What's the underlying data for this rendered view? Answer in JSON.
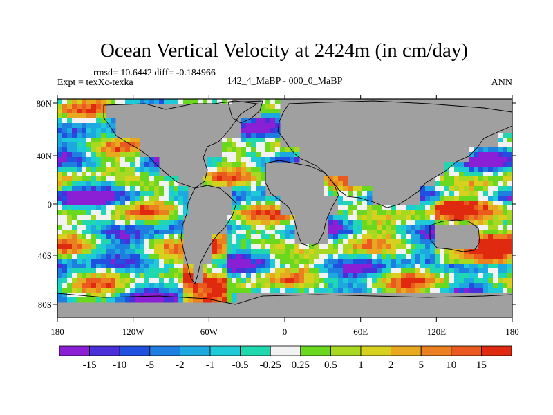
{
  "chart_data": {
    "type": "heatmap",
    "title": "Ocean Vertical Velocity at 2424m (in cm/day)",
    "stats_line": "rmsd= 10.6442 diff= -0.184966",
    "left_label": "Expt = texXc-texka",
    "center_label": "142_4_MaBP - 000_0_MaBP",
    "right_label": "ANN",
    "x_ticks": [
      "180",
      "120W",
      "60W",
      "0",
      "60E",
      "120E",
      "180"
    ],
    "y_ticks": [
      "80N",
      "40N",
      "0",
      "40S",
      "80S"
    ],
    "xlim": [
      -180,
      180
    ],
    "ylim": [
      -90,
      90
    ],
    "colorbar": {
      "labels": [
        "-15",
        "-10",
        "-5",
        "-2",
        "-1",
        "-0.5",
        "-0.25",
        "0.25",
        "0.5",
        "1",
        "2",
        "5",
        "10",
        "15"
      ],
      "colors": [
        "#8a1fd6",
        "#4b2fd8",
        "#1f50e0",
        "#1f7fe0",
        "#1ea8e0",
        "#1fcad8",
        "#1fd8b0",
        "#f2f2f2",
        "#6ad81f",
        "#a8d81f",
        "#d8d01f",
        "#e8a81f",
        "#ea8020",
        "#ea5a1f",
        "#e02a10"
      ]
    },
    "land_color": "#a0a0a0"
  }
}
